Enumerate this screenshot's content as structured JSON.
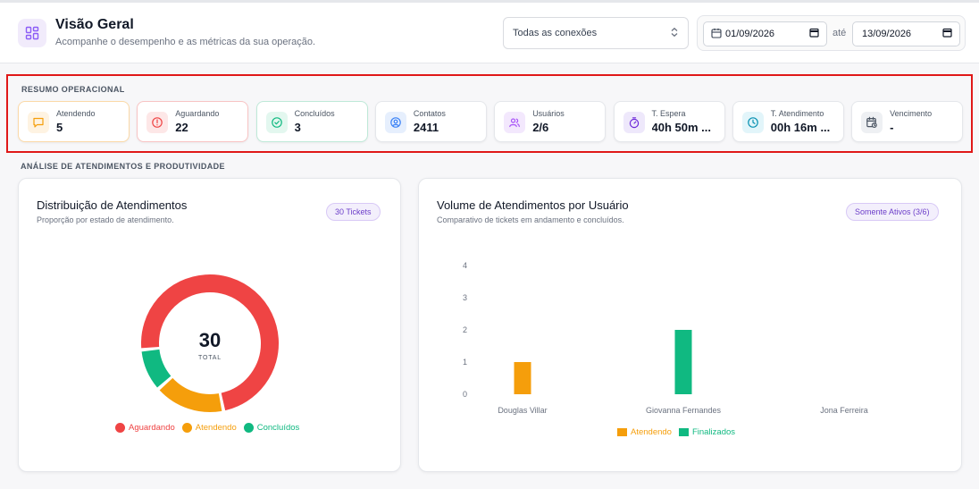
{
  "header": {
    "title": "Visão Geral",
    "subtitle": "Acompanhe o desempenho e as métricas da sua operação.",
    "connection_select": "Todas as conexões",
    "date_from": "01/09/2026",
    "date_separator": "até",
    "date_to": "13/09/2026"
  },
  "summary": {
    "section_title": "RESUMO OPERACIONAL",
    "cards": [
      {
        "label": "Atendendo",
        "value": "5",
        "icon": "message-icon",
        "color": "#f59e0b",
        "bg": "#fef3e2",
        "border": "#fbd9a8"
      },
      {
        "label": "Aguardando",
        "value": "22",
        "icon": "alert-circle-icon",
        "color": "#ef4444",
        "bg": "#fde7e7",
        "border": "#f8c4c4"
      },
      {
        "label": "Concluídos",
        "value": "3",
        "icon": "check-circle-icon",
        "color": "#10b981",
        "bg": "#e3f7ef",
        "border": "#bfe9d8"
      },
      {
        "label": "Contatos",
        "value": "2411",
        "icon": "user-circle-icon",
        "color": "#3b82f6",
        "bg": "#e6effd",
        "border": "#e5e7eb"
      },
      {
        "label": "Usuários",
        "value": "2/6",
        "icon": "users-icon",
        "color": "#a855f7",
        "bg": "#f3e8fd",
        "border": "#e5e7eb"
      },
      {
        "label": "T. Espera",
        "value": "40h 50m ...",
        "icon": "stopwatch-icon",
        "color": "#6d28d9",
        "bg": "#eee8fb",
        "border": "#e5e7eb"
      },
      {
        "label": "T. Atendimento",
        "value": "00h 16m ...",
        "icon": "clock-icon",
        "color": "#0891b2",
        "bg": "#e2f5fa",
        "border": "#e5e7eb"
      },
      {
        "label": "Vencimento",
        "value": "-",
        "icon": "calendar-clock-icon",
        "color": "#4b5563",
        "bg": "#eef0f3",
        "border": "#e5e7eb"
      }
    ]
  },
  "analysis": {
    "section_title": "ANÁLISE DE ATENDIMENTOS E PRODUTIVIDADE"
  },
  "donut_panel": {
    "title": "Distribuição de Atendimentos",
    "subtitle": "Proporção por estado de atendimento.",
    "badge": "30 Tickets",
    "center_value": "30",
    "center_label": "TOTAL"
  },
  "bar_panel": {
    "title": "Volume de Atendimentos por Usuário",
    "subtitle": "Comparativo de tickets em andamento e concluídos.",
    "badge": "Somente Ativos (3/6)"
  },
  "chart_data": [
    {
      "type": "pie",
      "title": "Distribuição de Atendimentos",
      "categories": [
        "Aguardando",
        "Atendendo",
        "Concluídos"
      ],
      "values": [
        22,
        5,
        3
      ],
      "colors": [
        "#ef4444",
        "#f59e0b",
        "#10b981"
      ],
      "center_text": "30",
      "legend": "bottom"
    },
    {
      "type": "bar",
      "title": "Volume de Atendimentos por Usuário",
      "categories": [
        "Douglas Villar",
        "Giovanna Fernandes",
        "Jona Ferreira"
      ],
      "series": [
        {
          "name": "Atendendo",
          "values": [
            1,
            0,
            0
          ],
          "color": "#f59e0b"
        },
        {
          "name": "Finalizados",
          "values": [
            0,
            2,
            0
          ],
          "color": "#10b981"
        }
      ],
      "yticks": [
        "0",
        "1",
        "2",
        "3",
        "4"
      ],
      "ylim": [
        0,
        4
      ],
      "grid": false,
      "legend": "bottom"
    }
  ]
}
